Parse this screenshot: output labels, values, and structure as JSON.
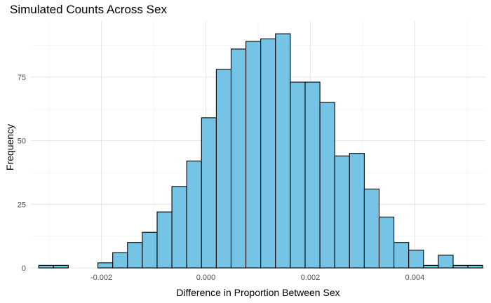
{
  "chart_data": {
    "type": "bar",
    "title": "Simulated Counts Across Sex",
    "xlabel": "Difference in Proportion Between Sex",
    "ylabel": "Frequency",
    "bin_width": 0.0002833,
    "bin_start": -0.0032,
    "values": [
      1,
      1,
      0,
      0,
      2,
      6,
      10,
      14,
      22,
      32,
      42,
      59,
      78,
      86,
      89,
      90,
      92,
      73,
      73,
      65,
      44,
      45,
      31,
      20,
      10,
      7,
      1,
      5,
      1,
      1
    ],
    "xlim": [
      -0.00335,
      0.00535
    ],
    "ylim": [
      0,
      97
    ],
    "x_ticks": [
      -0.002,
      0.0,
      0.002,
      0.004
    ],
    "x_tick_labels": [
      "-0.002",
      "0.000",
      "0.002",
      "0.004"
    ],
    "y_ticks": [
      0,
      25,
      50,
      75
    ],
    "y_tick_labels": [
      "0",
      "25",
      "50",
      "75"
    ],
    "grid": true,
    "bar_fill": "#75c4e6",
    "bar_stroke": "#000000"
  }
}
